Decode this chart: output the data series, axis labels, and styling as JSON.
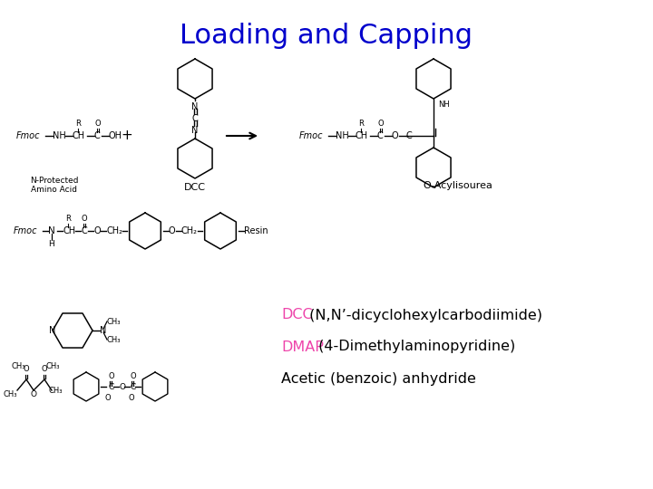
{
  "title": "Loading and Capping",
  "title_color": "#0000CC",
  "title_fontsize": 22,
  "bg_color": "#FFFFFF",
  "label1_colored": "DCC",
  "label1_colored_color": "#EE44AA",
  "label1_rest": " (N,N’-dicyclohexylcarbodiimide)",
  "label2_colored": "DMAP",
  "label2_colored_color": "#EE44AA",
  "label2_rest": " (4-Dimethylaminopyridine)",
  "label3": "Acetic (benzoic) anhydride",
  "label_fontsize": 11.5,
  "fig_width": 7.2,
  "fig_height": 5.4,
  "dpi": 100
}
